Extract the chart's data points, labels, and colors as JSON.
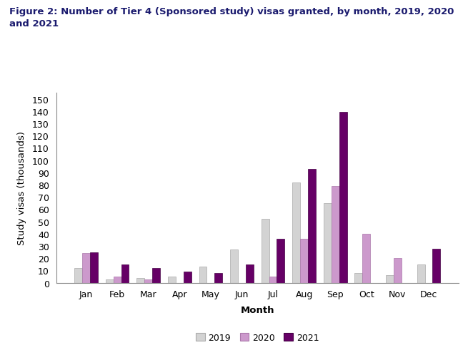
{
  "title_line1": "Figure 2: Number of Tier 4 (Sponsored study) visas granted, by month, 2019, 2020",
  "title_line2": "and 2021",
  "months": [
    "Jan",
    "Feb",
    "Mar",
    "Apr",
    "May",
    "Jun",
    "Jul",
    "Aug",
    "Sep",
    "Oct",
    "Nov",
    "Dec"
  ],
  "values_2019": [
    12,
    3,
    4,
    5,
    13,
    27,
    52,
    82,
    65,
    8,
    6,
    15
  ],
  "values_2020": [
    24,
    5,
    3,
    0,
    0,
    0,
    5,
    36,
    79,
    40,
    20,
    0
  ],
  "values_2021": [
    25,
    15,
    12,
    9,
    8,
    15,
    36,
    93,
    139,
    0,
    0,
    28
  ],
  "color_2019": "#d3d3d3",
  "color_2020": "#cc99cc",
  "color_2021": "#660066",
  "color_2019_edge": "#aaaaaa",
  "color_2020_edge": "#aa77aa",
  "color_2021_edge": "#440044",
  "ylabel": "Study visas (thousands)",
  "xlabel": "Month",
  "ylim": [
    0,
    155
  ],
  "yticks": [
    0,
    10,
    20,
    30,
    40,
    50,
    60,
    70,
    80,
    90,
    100,
    110,
    120,
    130,
    140,
    150
  ],
  "legend_labels": [
    "2019",
    "2020",
    "2021"
  ],
  "title_fontsize": 9.5,
  "axis_label_fontsize": 9.5,
  "tick_fontsize": 9,
  "legend_fontsize": 9,
  "bar_width": 0.25,
  "title_color": "#1a1a6e",
  "background_color": "#ffffff"
}
